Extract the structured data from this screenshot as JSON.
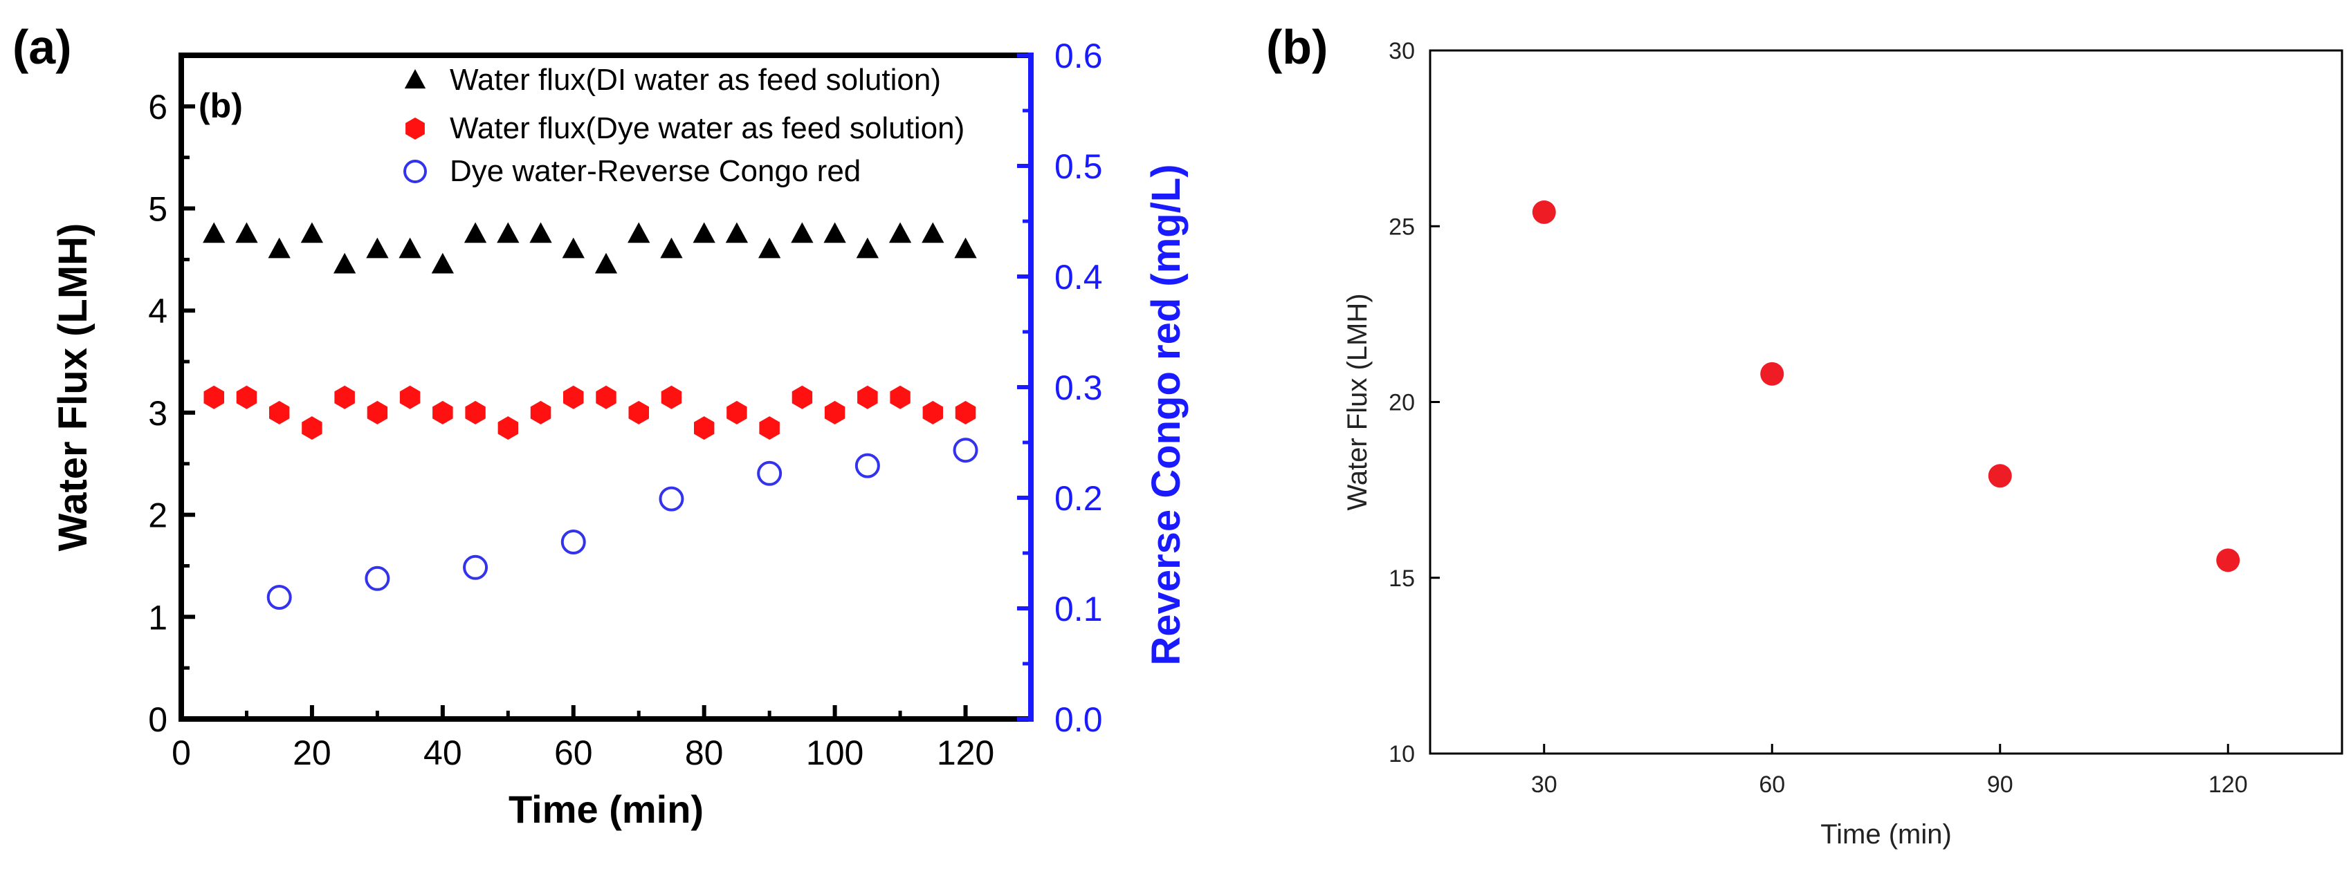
{
  "panels": {
    "a": {
      "label": "(a)",
      "inner_label": "(b)"
    },
    "b": {
      "label": "(b)"
    }
  },
  "chart_data": [
    {
      "type": "scatter",
      "xlabel": "Time (min)",
      "ylabel": "Water Flux (LMH)",
      "y2label": "Reverse Congo red (mg/L)",
      "xlim": [
        0,
        130
      ],
      "ylim": [
        0,
        6.5
      ],
      "y2lim": [
        0,
        0.6
      ],
      "xticks": [
        0,
        20,
        40,
        60,
        80,
        100,
        120
      ],
      "xtick_labels": [
        "0",
        "20",
        "40",
        "60",
        "80",
        "100",
        "120"
      ],
      "yticks": [
        0,
        1,
        2,
        3,
        4,
        5,
        6
      ],
      "ytick_labels": [
        "0",
        "1",
        "2",
        "3",
        "4",
        "5",
        "6"
      ],
      "y2ticks": [
        0,
        0.1,
        0.2,
        0.3,
        0.4,
        0.5,
        0.6
      ],
      "y2tick_labels": [
        "0.0",
        "0.1",
        "0.2",
        "0.3",
        "0.4",
        "0.5",
        "0.6"
      ],
      "legend_position": "top-right",
      "colors": {
        "axis_right": "#1a1aff",
        "di": "#000000",
        "dye": "#ff1111",
        "congo": "#3333ee"
      },
      "series": [
        {
          "name": "Water flux(DI water as feed solution)",
          "marker": "triangle",
          "axis": "left",
          "x": [
            5,
            10,
            15,
            20,
            25,
            30,
            35,
            40,
            45,
            50,
            55,
            60,
            65,
            70,
            75,
            80,
            85,
            90,
            95,
            100,
            105,
            110,
            115,
            120
          ],
          "y": [
            4.75,
            4.75,
            4.6,
            4.75,
            4.45,
            4.6,
            4.6,
            4.45,
            4.75,
            4.75,
            4.75,
            4.6,
            4.45,
            4.75,
            4.6,
            4.75,
            4.75,
            4.6,
            4.75,
            4.75,
            4.6,
            4.75,
            4.75,
            4.6
          ]
        },
        {
          "name": "Water flux(Dye water as feed solution)",
          "marker": "hexagon",
          "axis": "left",
          "x": [
            5,
            10,
            15,
            20,
            25,
            30,
            35,
            40,
            45,
            50,
            55,
            60,
            65,
            70,
            75,
            80,
            85,
            90,
            95,
            100,
            105,
            110,
            115,
            120
          ],
          "y": [
            3.15,
            3.15,
            3.0,
            2.85,
            3.15,
            3.0,
            3.15,
            3.0,
            3.0,
            2.85,
            3.0,
            3.15,
            3.15,
            3.0,
            3.15,
            2.85,
            3.0,
            2.85,
            3.15,
            3.0,
            3.15,
            3.15,
            3.0,
            3.0
          ]
        },
        {
          "name": "Dye water-Reverse Congo red",
          "marker": "open-circle",
          "axis": "right",
          "x": [
            15,
            30,
            45,
            60,
            75,
            90,
            105,
            120
          ],
          "y": [
            0.11,
            0.127,
            0.137,
            0.16,
            0.199,
            0.222,
            0.229,
            0.243
          ]
        }
      ]
    },
    {
      "type": "scatter",
      "xlabel": "Time (min)",
      "ylabel": "Water Flux (LMH)",
      "xlim": [
        15,
        135
      ],
      "ylim": [
        10,
        30
      ],
      "xticks": [
        30,
        60,
        90,
        120
      ],
      "xtick_labels": [
        "30",
        "60",
        "90",
        "120"
      ],
      "yticks": [
        10,
        15,
        20,
        25,
        30
      ],
      "ytick_labels": [
        "10",
        "15",
        "20",
        "25",
        "30"
      ],
      "colors": {
        "points": "#ee1c24"
      },
      "series": [
        {
          "marker": "circle",
          "x": [
            30,
            60,
            90,
            120
          ],
          "y": [
            25.4,
            20.8,
            17.9,
            15.5
          ]
        }
      ]
    }
  ]
}
